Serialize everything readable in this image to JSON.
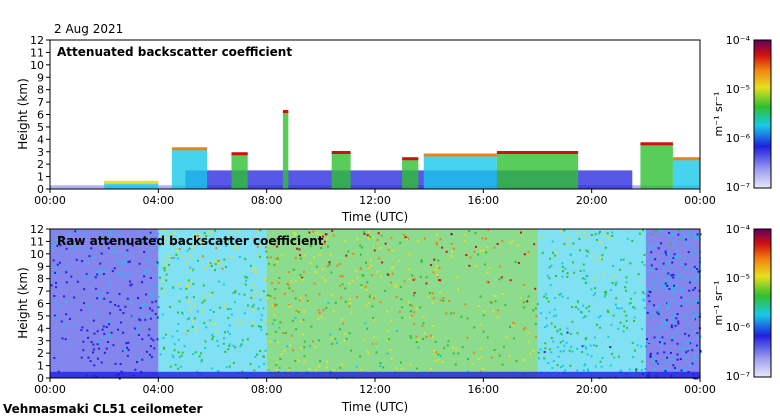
{
  "date": "2 Aug 2021",
  "footer": "Vehmasmaki CL51 ceilometer",
  "colors": {
    "background_low": "#d8d8f0",
    "blue": "#2020e0",
    "cyan": "#18c8e8",
    "green": "#30c030",
    "yellow": "#e8e020",
    "orange": "#f08010",
    "red": "#d01010",
    "purple": "#600060"
  },
  "chart_data": [
    {
      "type": "heatmap",
      "title": "Attenuated backscatter coefficient",
      "xlabel": "Time (UTC)",
      "ylabel": "Height (km)",
      "x_ticks": [
        "00:00",
        "04:00",
        "08:00",
        "12:00",
        "16:00",
        "20:00",
        "00:00"
      ],
      "y_ticks": [
        "0",
        "1",
        "2",
        "3",
        "4",
        "5",
        "6",
        "7",
        "8",
        "9",
        "10",
        "11",
        "12"
      ],
      "xlim_hours": [
        0,
        24
      ],
      "ylim_km": [
        0,
        12
      ],
      "colorbar": {
        "label": "m⁻¹ sr⁻¹",
        "scale": "log",
        "range": [
          1e-07,
          0.0001
        ],
        "tick_labels": [
          "10⁻⁴",
          "10⁻⁵",
          "10⁻⁶",
          "10⁻⁷"
        ]
      },
      "cloud_layers": [
        {
          "start_h": 2.0,
          "end_h": 4.0,
          "top_km": 0.5,
          "level": 0.6
        },
        {
          "start_h": 4.5,
          "end_h": 5.8,
          "top_km": 3.2,
          "level": 0.7
        },
        {
          "start_h": 6.7,
          "end_h": 7.3,
          "top_km": 2.8,
          "level": 0.85
        },
        {
          "start_h": 8.6,
          "end_h": 8.8,
          "top_km": 6.2,
          "level": 0.9
        },
        {
          "start_h": 10.4,
          "end_h": 11.1,
          "top_km": 2.9,
          "level": 0.8
        },
        {
          "start_h": 13.0,
          "end_h": 13.6,
          "top_km": 2.4,
          "level": 0.85
        },
        {
          "start_h": 13.8,
          "end_h": 16.5,
          "top_km": 2.7,
          "level": 0.75
        },
        {
          "start_h": 16.5,
          "end_h": 19.5,
          "top_km": 2.9,
          "level": 0.8
        },
        {
          "start_h": 21.8,
          "end_h": 23.0,
          "top_km": 3.6,
          "level": 0.85
        },
        {
          "start_h": 23.0,
          "end_h": 24.0,
          "top_km": 2.4,
          "level": 0.7
        }
      ]
    },
    {
      "type": "heatmap",
      "title": "Raw attenuated backscatter coefficient",
      "xlabel": "Time (UTC)",
      "ylabel": "Height (km)",
      "x_ticks": [
        "00:00",
        "04:00",
        "08:00",
        "12:00",
        "16:00",
        "20:00",
        "00:00"
      ],
      "y_ticks": [
        "0",
        "1",
        "2",
        "3",
        "4",
        "5",
        "6",
        "7",
        "8",
        "9",
        "10",
        "11",
        "12"
      ],
      "xlim_hours": [
        0,
        24
      ],
      "ylim_km": [
        0,
        12
      ],
      "colorbar": {
        "label": "m⁻¹ sr⁻¹",
        "scale": "log",
        "range": [
          1e-07,
          0.0001
        ],
        "tick_labels": [
          "10⁻⁴",
          "10⁻⁵",
          "10⁻⁶",
          "10⁻⁷"
        ]
      },
      "noise_columns": [
        {
          "start_h": 0.0,
          "end_h": 4.0,
          "level": 0.25
        },
        {
          "start_h": 4.0,
          "end_h": 8.0,
          "level": 0.55
        },
        {
          "start_h": 8.0,
          "end_h": 12.0,
          "level": 0.7
        },
        {
          "start_h": 12.0,
          "end_h": 18.0,
          "level": 0.75
        },
        {
          "start_h": 18.0,
          "end_h": 22.0,
          "level": 0.45
        },
        {
          "start_h": 22.0,
          "end_h": 24.0,
          "level": 0.3
        }
      ]
    }
  ]
}
